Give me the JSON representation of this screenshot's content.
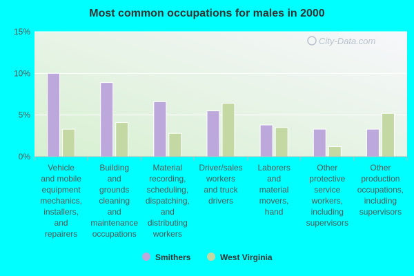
{
  "colors": {
    "background": "#00FFFF",
    "smithers": "#bca8da",
    "west_virginia": "#c4d8a4",
    "plot_top": "#f7f7fb",
    "plot_bottom": "#d7f0d1",
    "axis_text": "#555555"
  },
  "watermark": "City-Data.com",
  "chart_data": {
    "type": "bar",
    "title": "Most common occupations for males in 2000",
    "xlabel": "",
    "ylabel": "",
    "ylim": [
      0,
      15
    ],
    "ytick_labels": [
      "0%",
      "5%",
      "10%",
      "15%"
    ],
    "yticks": [
      0,
      5,
      10,
      15
    ],
    "grid": true,
    "legend_position": "bottom",
    "categories": [
      "Vehicle and mobile equipment mechanics, installers, and repairers",
      "Building and grounds cleaning and maintenance occupations",
      "Material recording, scheduling, dispatching, and distributing workers",
      "Driver/sales workers and truck drivers",
      "Laborers and material movers, hand",
      "Other protective service workers, including supervisors",
      "Other production occupations, including supervisors"
    ],
    "category_lines": [
      [
        "Vehicle",
        "and mobile",
        "equipment",
        "mechanics,",
        "installers,",
        "and",
        "repairers"
      ],
      [
        "Building",
        "and",
        "grounds",
        "cleaning",
        "and",
        "maintenance",
        "occupations"
      ],
      [
        "Material",
        "recording,",
        "scheduling,",
        "dispatching,",
        "and",
        "distributing",
        "workers"
      ],
      [
        "Driver/sales",
        "workers",
        "and truck",
        "drivers"
      ],
      [
        "Laborers",
        "and",
        "material",
        "movers,",
        "hand"
      ],
      [
        "Other",
        "protective",
        "service",
        "workers,",
        "including",
        "supervisors"
      ],
      [
        "Other",
        "production",
        "occupations,",
        "including",
        "supervisors"
      ]
    ],
    "series": [
      {
        "name": "Smithers",
        "values": [
          10.0,
          8.9,
          6.6,
          5.5,
          3.8,
          3.3,
          3.3
        ]
      },
      {
        "name": "West Virginia",
        "values": [
          3.3,
          4.1,
          2.8,
          6.4,
          3.5,
          1.2,
          5.2
        ]
      }
    ]
  }
}
